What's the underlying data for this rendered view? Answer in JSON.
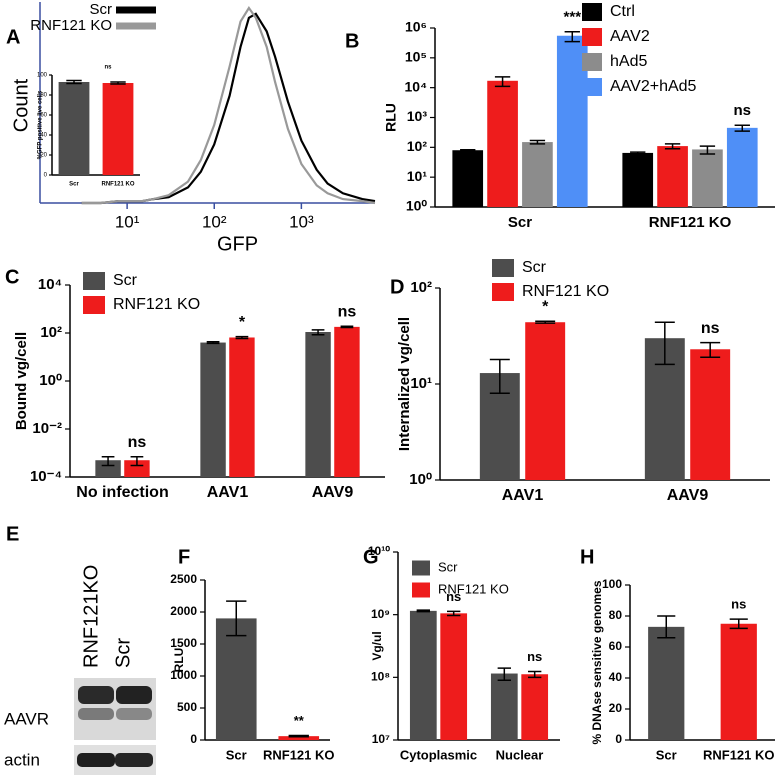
{
  "chart_data": [
    {
      "label": "A",
      "type": "line",
      "xscale": "log",
      "xlabel": "GFP",
      "ylabel": "Count",
      "xlim": [
        1,
        7000
      ],
      "xticks": [
        {
          "value": 10,
          "label": "10¹"
        },
        {
          "value": 100,
          "label": "10²"
        },
        {
          "value": 1000,
          "label": "10³"
        }
      ],
      "ylim": [
        0,
        100
      ],
      "x": [
        3,
        5,
        8,
        10,
        15,
        20,
        30,
        50,
        70,
        100,
        150,
        200,
        250,
        300,
        400,
        500,
        700,
        1000,
        1500,
        2000,
        3000,
        5000,
        7000
      ],
      "series": [
        {
          "name": "Scr",
          "color": "#000000",
          "values": [
            0,
            0,
            1,
            1,
            1,
            2,
            3,
            8,
            16,
            30,
            55,
            80,
            95,
            97,
            88,
            75,
            52,
            32,
            17,
            10,
            5,
            2,
            1
          ]
        },
        {
          "name": "RNF121 KO",
          "color": "#999999",
          "values": [
            0,
            0,
            1,
            1,
            1,
            2,
            4,
            11,
            22,
            40,
            70,
            93,
            100,
            95,
            80,
            62,
            38,
            20,
            9,
            5,
            2,
            1,
            0
          ]
        }
      ]
    },
    {
      "type": "bar",
      "ylabel": "%GFP positive live cells",
      "categories": [
        "Scr",
        "RNF121 KO"
      ],
      "ylim": [
        0,
        100
      ],
      "yticks": [
        0,
        20,
        40,
        60,
        80,
        100
      ],
      "annotation": "ns",
      "series": [
        {
          "values": [
            93,
            92
          ],
          "errors": [
            1.5,
            1
          ],
          "colors": [
            "#4d4d4d",
            "#ee1c1c"
          ]
        }
      ]
    },
    {
      "label": "B",
      "type": "bar",
      "yscale": "log",
      "ylabel": "RLU",
      "categories": [
        "Scr",
        "RNF121 KO"
      ],
      "ylim": [
        1,
        1000000
      ],
      "yticks": [
        {
          "value": 1,
          "label": "10⁰"
        },
        {
          "value": 10,
          "label": "10¹"
        },
        {
          "value": 100,
          "label": "10²"
        },
        {
          "value": 1000,
          "label": "10³"
        },
        {
          "value": 10000,
          "label": "10⁴"
        },
        {
          "value": 100000,
          "label": "10⁵"
        },
        {
          "value": 1000000,
          "label": "10⁶"
        }
      ],
      "series": [
        {
          "name": "Ctrl",
          "color": "#000000",
          "values": [
            80,
            65
          ],
          "errors": [
            3,
            4
          ]
        },
        {
          "name": "AAV2",
          "color": "#ee1c1c",
          "values": [
            17000,
            110
          ],
          "errors": [
            6000,
            20
          ]
        },
        {
          "name": "hAd5",
          "color": "#8c8c8c",
          "values": [
            150,
            85
          ],
          "errors": [
            20,
            25
          ]
        },
        {
          "name": "AAV2+hAd5",
          "color": "#4f8ff7",
          "values": [
            550000,
            450
          ],
          "errors": [
            200000,
            100
          ],
          "annotations": [
            "***",
            "ns"
          ]
        }
      ]
    },
    {
      "label": "C",
      "type": "bar",
      "yscale": "log",
      "ylabel": "Bound vg/cell",
      "categories": [
        "No infection",
        "AAV1",
        "AAV9"
      ],
      "ylim": [
        0.0001,
        10000
      ],
      "yticks": [
        {
          "value": 0.0001,
          "label": "10⁻⁴"
        },
        {
          "value": 0.01,
          "label": "10⁻²"
        },
        {
          "value": 1,
          "label": "10⁰"
        },
        {
          "value": 100,
          "label": "10²"
        },
        {
          "value": 10000,
          "label": "10⁴"
        }
      ],
      "series": [
        {
          "name": "Scr",
          "color": "#4d4d4d",
          "values": [
            0.0005,
            40,
            110
          ],
          "errors": [
            0.0002,
            3,
            25
          ]
        },
        {
          "name": "RNF121 KO",
          "color": "#ee1c1c",
          "values": [
            0.0005,
            65,
            180
          ],
          "errors": [
            0.0002,
            6,
            10
          ],
          "annotations": [
            "ns",
            "*",
            "ns"
          ]
        }
      ]
    },
    {
      "label": "D",
      "type": "bar",
      "yscale": "log",
      "ylabel": "Internalized vg/cell",
      "categories": [
        "AAV1",
        "AAV9"
      ],
      "ylim": [
        1,
        100
      ],
      "yticks": [
        {
          "value": 1,
          "label": "10⁰"
        },
        {
          "value": 10,
          "label": "10¹"
        },
        {
          "value": 100,
          "label": "10²"
        }
      ],
      "series": [
        {
          "name": "Scr",
          "color": "#4d4d4d",
          "values": [
            13,
            30
          ],
          "errors": [
            5,
            14
          ]
        },
        {
          "name": "RNF121 KO",
          "color": "#ee1c1c",
          "values": [
            44,
            23
          ],
          "errors": [
            1,
            4
          ],
          "annotations": [
            "*",
            "ns"
          ]
        }
      ]
    },
    {
      "label": "F",
      "type": "bar",
      "ylabel": "RLU",
      "categories": [
        "Scr",
        "RNF121 KO"
      ],
      "ylim": [
        0,
        2500
      ],
      "yticks": [
        0,
        500,
        1000,
        1500,
        2000,
        2500
      ],
      "series": [
        {
          "values": [
            1900,
            60
          ],
          "errors": [
            270,
            10
          ],
          "colors": [
            "#4d4d4d",
            "#ee1c1c"
          ],
          "annotations": [
            null,
            "**"
          ]
        }
      ]
    },
    {
      "label": "G",
      "type": "bar",
      "yscale": "log",
      "ylabel": "Vg/ul",
      "categories": [
        "Cytoplasmic",
        "Nuclear"
      ],
      "ylim": [
        10000000,
        10000000000
      ],
      "yticks": [
        {
          "value": 10000000,
          "label": "10⁷"
        },
        {
          "value": 100000000,
          "label": "10⁸"
        },
        {
          "value": 1000000000,
          "label": "10⁹"
        },
        {
          "value": 10000000000,
          "label": "10¹⁰"
        }
      ],
      "series": [
        {
          "name": "Scr",
          "color": "#4d4d4d",
          "values": [
            1150000000,
            115000000
          ],
          "errors": [
            30000000,
            25000000
          ]
        },
        {
          "name": "RNF121 KO",
          "color": "#ee1c1c",
          "values": [
            1050000000,
            112000000
          ],
          "errors": [
            80000000,
            12000000
          ],
          "annotations": [
            "ns",
            "ns"
          ]
        }
      ]
    },
    {
      "label": "H",
      "type": "bar",
      "ylabel": "% DNAse sensitive genomes",
      "categories": [
        "Scr",
        "RNF121 KO"
      ],
      "ylim": [
        0,
        100
      ],
      "yticks": [
        0,
        20,
        40,
        60,
        80,
        100
      ],
      "series": [
        {
          "values": [
            73,
            75
          ],
          "errors": [
            7,
            3
          ],
          "colors": [
            "#4d4d4d",
            "#ee1c1c"
          ],
          "annotations": [
            null,
            "ns"
          ]
        }
      ]
    }
  ],
  "blot": {
    "label": "E",
    "lanes": [
      "RNF121KO",
      "Scr"
    ],
    "bands": [
      "AAVR",
      "actin"
    ]
  }
}
